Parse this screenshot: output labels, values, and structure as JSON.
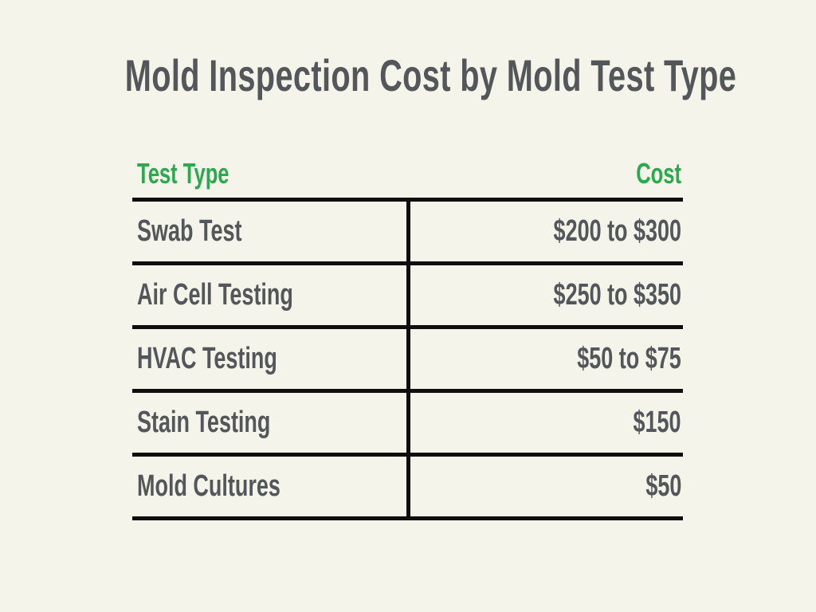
{
  "title": "Mold Inspection Cost by Mold Test Type",
  "table": {
    "headers": {
      "test_type": "Test Type",
      "cost": "Cost"
    },
    "rows": [
      {
        "test_type": "Swab Test",
        "cost": "$200 to $300"
      },
      {
        "test_type": "Air Cell Testing",
        "cost": "$250 to $350"
      },
      {
        "test_type": "HVAC Testing",
        "cost": "$50 to $75"
      },
      {
        "test_type": "Stain Testing",
        "cost": "$150"
      },
      {
        "test_type": "Mold Cultures",
        "cost": "$50"
      }
    ]
  },
  "colors": {
    "background": "#F5F4EA",
    "header_green": "#2CA84E",
    "text_gray": "#54575A",
    "line_black": "#0F0F0F"
  },
  "chart_data": {
    "type": "table",
    "title": "Mold Inspection Cost by Mold Test Type",
    "columns": [
      "Test Type",
      "Cost"
    ],
    "rows": [
      [
        "Swab Test",
        "$200 to $300"
      ],
      [
        "Air Cell Testing",
        "$250 to $350"
      ],
      [
        "HVAC Testing",
        "$50 to $75"
      ],
      [
        "Stain Testing",
        "$150"
      ],
      [
        "Mold Cultures",
        "$50"
      ]
    ]
  }
}
